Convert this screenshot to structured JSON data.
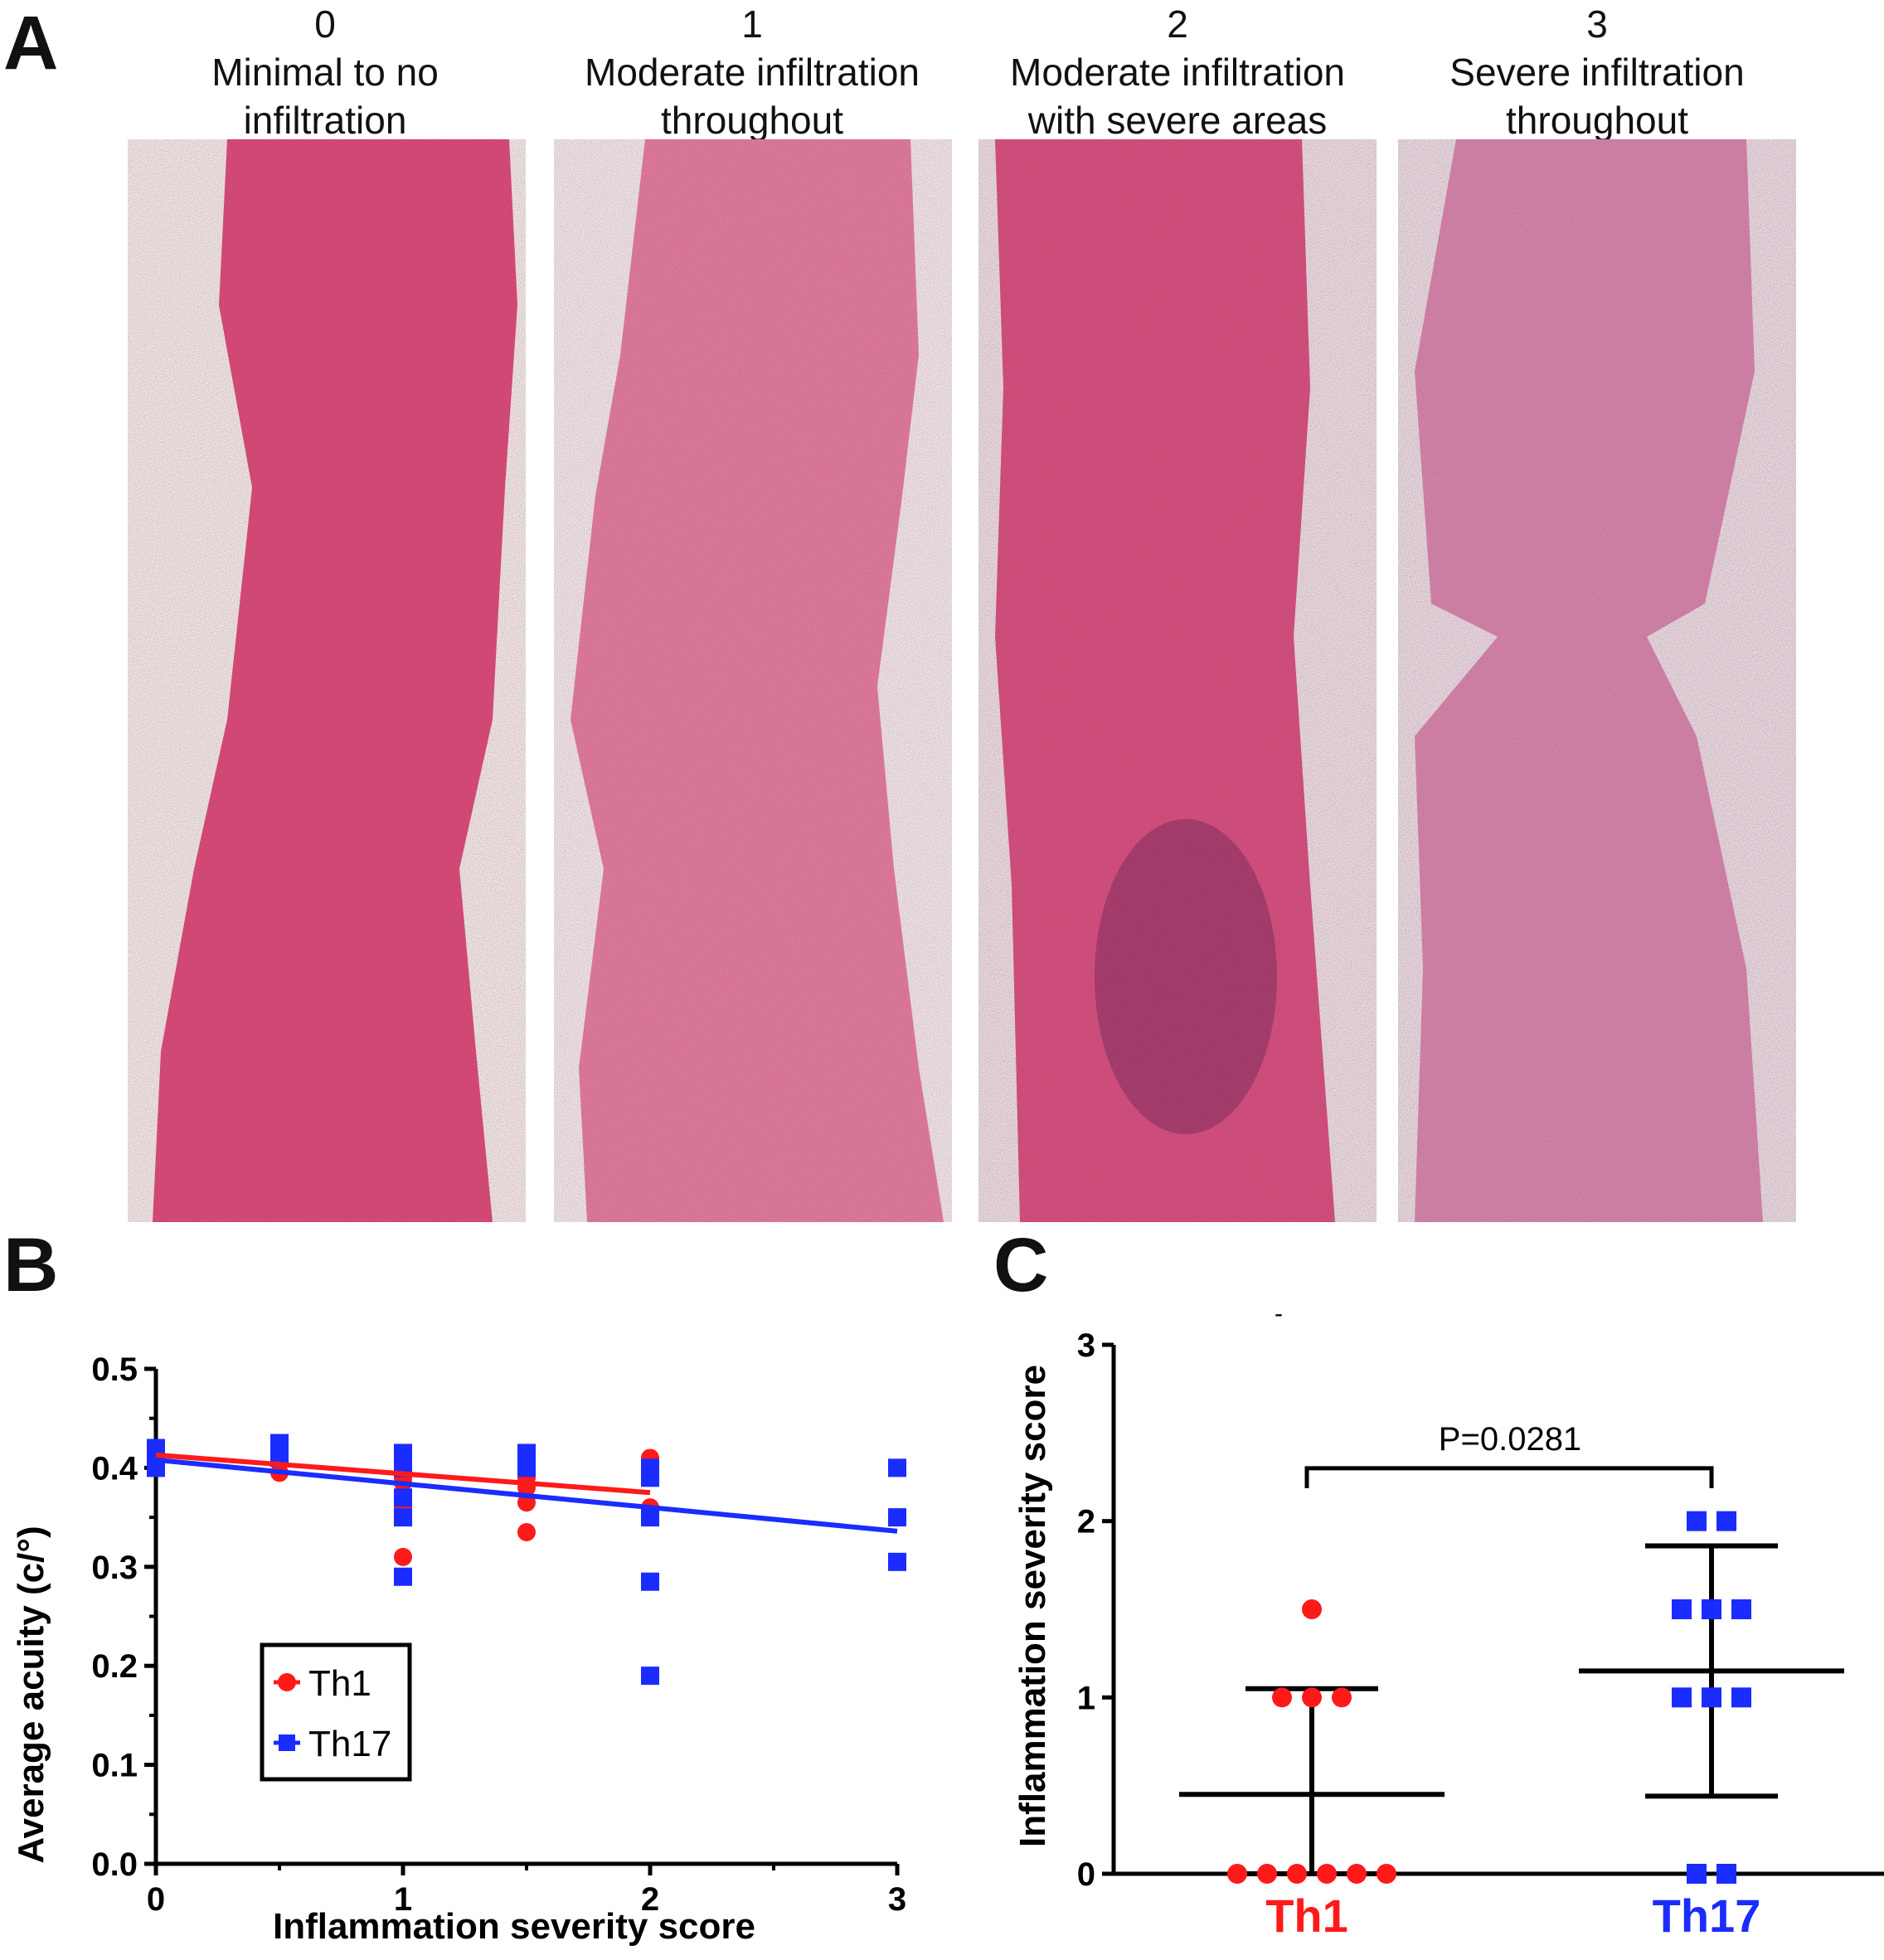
{
  "panels": {
    "a": {
      "letter": "A",
      "columns": [
        {
          "score": "0",
          "line1": "Minimal to no",
          "line2": "infiltration"
        },
        {
          "score": "1",
          "line1": "Moderate infiltration",
          "line2": "throughout"
        },
        {
          "score": "2",
          "line1": "Moderate infiltration",
          "line2": "with severe areas"
        },
        {
          "score": "3",
          "line1": "Severe infiltration",
          "line2": "throughout"
        }
      ]
    },
    "b": {
      "letter": "B"
    },
    "c": {
      "letter": "C",
      "stray_mark": "-"
    }
  },
  "colors": {
    "th1": "#ff1a1a",
    "th17": "#1a2cff",
    "tissue": "#d9507a",
    "background_slide": "#efeee6"
  },
  "chart_data": [
    {
      "type": "scatter",
      "panel": "B",
      "xlabel": "Inflammation severity score",
      "ylabel": "Average acuity (c/°)",
      "xlim": [
        0,
        3
      ],
      "ylim": [
        0,
        0.5
      ],
      "x_ticks": [
        "0",
        "1",
        "2",
        "3"
      ],
      "y_ticks": [
        "0.0",
        "0.1",
        "0.2",
        "0.3",
        "0.4",
        "0.5"
      ],
      "grid": false,
      "legend_position": "bottom-left",
      "series": [
        {
          "name": "Th1",
          "marker": "circle",
          "color": "#ff1a1a",
          "points": [
            [
              0,
              0.41
            ],
            [
              0,
              0.405
            ],
            [
              0,
              0.415
            ],
            [
              0.5,
              0.395
            ],
            [
              0.5,
              0.41
            ],
            [
              1,
              0.41
            ],
            [
              1,
              0.4
            ],
            [
              1,
              0.39
            ],
            [
              1,
              0.385
            ],
            [
              1,
              0.36
            ],
            [
              1,
              0.31
            ],
            [
              1.5,
              0.41
            ],
            [
              1.5,
              0.39
            ],
            [
              1.5,
              0.38
            ],
            [
              1.5,
              0.365
            ],
            [
              1.5,
              0.335
            ],
            [
              2,
              0.41
            ],
            [
              2,
              0.36
            ]
          ],
          "trend": [
            [
              0,
              0.413
            ],
            [
              2,
              0.375
            ]
          ]
        },
        {
          "name": "Th17",
          "marker": "square",
          "color": "#1a2cff",
          "points": [
            [
              0,
              0.42
            ],
            [
              0,
              0.41
            ],
            [
              0,
              0.4
            ],
            [
              0.5,
              0.425
            ],
            [
              0.5,
              0.41
            ],
            [
              1,
              0.415
            ],
            [
              1,
              0.4
            ],
            [
              1,
              0.37
            ],
            [
              1,
              0.35
            ],
            [
              1,
              0.29
            ],
            [
              1.5,
              0.415
            ],
            [
              1.5,
              0.4
            ],
            [
              2,
              0.4
            ],
            [
              2,
              0.39
            ],
            [
              2,
              0.35
            ],
            [
              2,
              0.285
            ],
            [
              2,
              0.19
            ],
            [
              3,
              0.4
            ],
            [
              3,
              0.35
            ],
            [
              3,
              0.305
            ]
          ],
          "trend": [
            [
              0,
              0.408
            ],
            [
              3,
              0.336
            ]
          ]
        }
      ]
    },
    {
      "type": "scatter",
      "panel": "C",
      "categories": [
        "Th1",
        "Th17"
      ],
      "ylabel": "Inflammation severity score",
      "ylim": [
        0,
        3
      ],
      "y_ticks": [
        "0",
        "1",
        "2",
        "3"
      ],
      "grid": false,
      "annotation": "P=0.0281",
      "series": [
        {
          "name": "Th1",
          "marker": "circle",
          "color": "#ff1a1a",
          "values": [
            0,
            0,
            0,
            0,
            0,
            0,
            1,
            1,
            1,
            1.5
          ],
          "mean": 0.45,
          "sd_low": 0.0,
          "sd_high": 1.05
        },
        {
          "name": "Th17",
          "marker": "square",
          "color": "#1a2cff",
          "values": [
            0,
            0,
            1,
            1,
            1,
            1.5,
            1.5,
            1.5,
            2,
            2
          ],
          "mean": 1.15,
          "sd_low": 0.44,
          "sd_high": 1.86
        }
      ]
    }
  ]
}
